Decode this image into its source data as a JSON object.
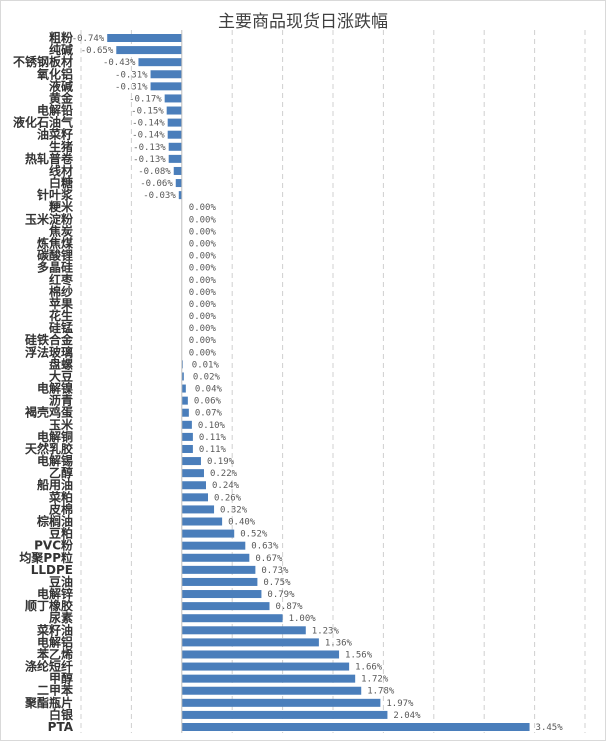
{
  "chart_data": {
    "type": "bar",
    "orientation": "horizontal",
    "title": "主要商品现货日涨跌幅",
    "xlabel": "",
    "ylabel": "",
    "xlim": [
      -1,
      4
    ],
    "grid": "vertical dashed",
    "legend": "none",
    "bar_color": "#4a7ebb",
    "value_format": "percent",
    "categories": [
      "粗粉",
      "纯碱",
      "不锈钢板材",
      "氧化铝",
      "液碱",
      "黄金",
      "电解铅",
      "液化石油气",
      "油菜籽",
      "生猪",
      "热轧普卷",
      "线材",
      "白糖",
      "针叶浆",
      "粳米",
      "玉米淀粉",
      "焦炭",
      "炼焦煤",
      "碳酸锂",
      "多晶硅",
      "红枣",
      "棉纱",
      "苹果",
      "花生",
      "硅锰",
      "硅铁合金",
      "浮法玻璃",
      "盘螺",
      "大豆",
      "电解镍",
      "沥青",
      "褐壳鸡蛋",
      "玉米",
      "电解铜",
      "天然乳胶",
      "电解锡",
      "乙醇",
      "船用油",
      "菜粕",
      "皮棉",
      "棕榈油",
      "豆粕",
      "PVC粉",
      "均聚PP粒",
      "LLDPE",
      "豆油",
      "电解锌",
      "顺丁橡胶",
      "尿素",
      "菜籽油",
      "电解铝",
      "苯乙烯",
      "涤纶短纤",
      "甲醇",
      "二甲苯",
      "聚酯瓶片",
      "白银",
      "PTA"
    ],
    "values": [
      -0.74,
      -0.65,
      -0.43,
      -0.31,
      -0.31,
      -0.17,
      -0.15,
      -0.14,
      -0.14,
      -0.13,
      -0.13,
      -0.08,
      -0.06,
      -0.03,
      0.0,
      0.0,
      0.0,
      0.0,
      0.0,
      0.0,
      0.0,
      0.0,
      0.0,
      0.0,
      0.0,
      0.0,
      0.0,
      0.01,
      0.02,
      0.04,
      0.06,
      0.07,
      0.1,
      0.11,
      0.11,
      0.19,
      0.22,
      0.24,
      0.26,
      0.32,
      0.4,
      0.52,
      0.63,
      0.67,
      0.73,
      0.75,
      0.79,
      0.87,
      1.0,
      1.23,
      1.36,
      1.56,
      1.66,
      1.72,
      1.78,
      1.97,
      2.04,
      3.45
    ]
  }
}
